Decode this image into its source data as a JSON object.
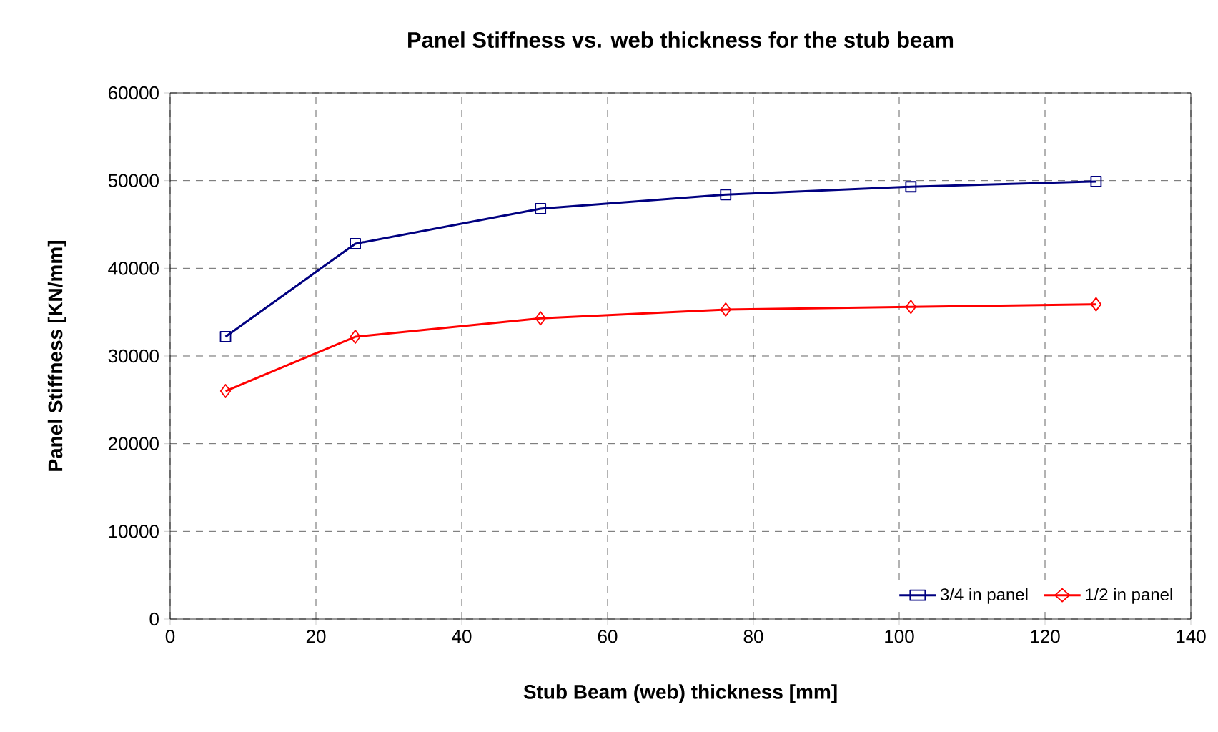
{
  "chart_data": {
    "type": "line",
    "title": "Panel Stiffness vs. web thickness for the stub beam",
    "xlabel": "Stub Beam (web) thickness [mm]",
    "ylabel": "Panel Stiffness [KN/mm]",
    "x": [
      7.6,
      25.4,
      50.8,
      76.2,
      101.6,
      127
    ],
    "series": [
      {
        "name": "3/4 in panel",
        "color": "#000080",
        "marker": "square",
        "values": [
          32200,
          42800,
          46800,
          48400,
          49300,
          49900
        ]
      },
      {
        "name": "1/2 in panel",
        "color": "#ff0000",
        "marker": "diamond",
        "values": [
          26000,
          32200,
          34300,
          35300,
          35600,
          35900
        ]
      }
    ],
    "xlim": [
      0,
      140
    ],
    "xticks": [
      0,
      20,
      40,
      60,
      80,
      100,
      120,
      140
    ],
    "ylim": [
      0,
      60000
    ],
    "yticks": [
      0,
      10000,
      20000,
      30000,
      40000,
      50000,
      60000
    ],
    "grid": true,
    "legend": "bottom right",
    "line_style": "solid"
  }
}
